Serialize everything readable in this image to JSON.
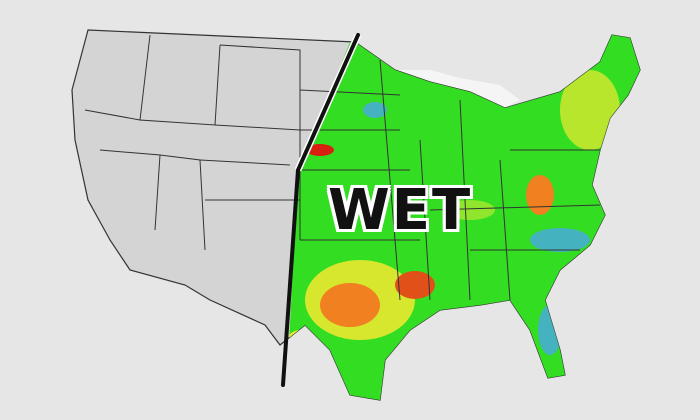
{
  "map": {
    "label": "WET",
    "colors": {
      "background": "#e6e6e6",
      "dry_region": "#d4d4d4",
      "state_borders": "#333333",
      "wet_green": "#33dd22",
      "yellow": "#e8e830",
      "orange": "#f08020",
      "red": "#d82010",
      "blue": "#4aa8e8",
      "divider_line": "#111111"
    }
  }
}
